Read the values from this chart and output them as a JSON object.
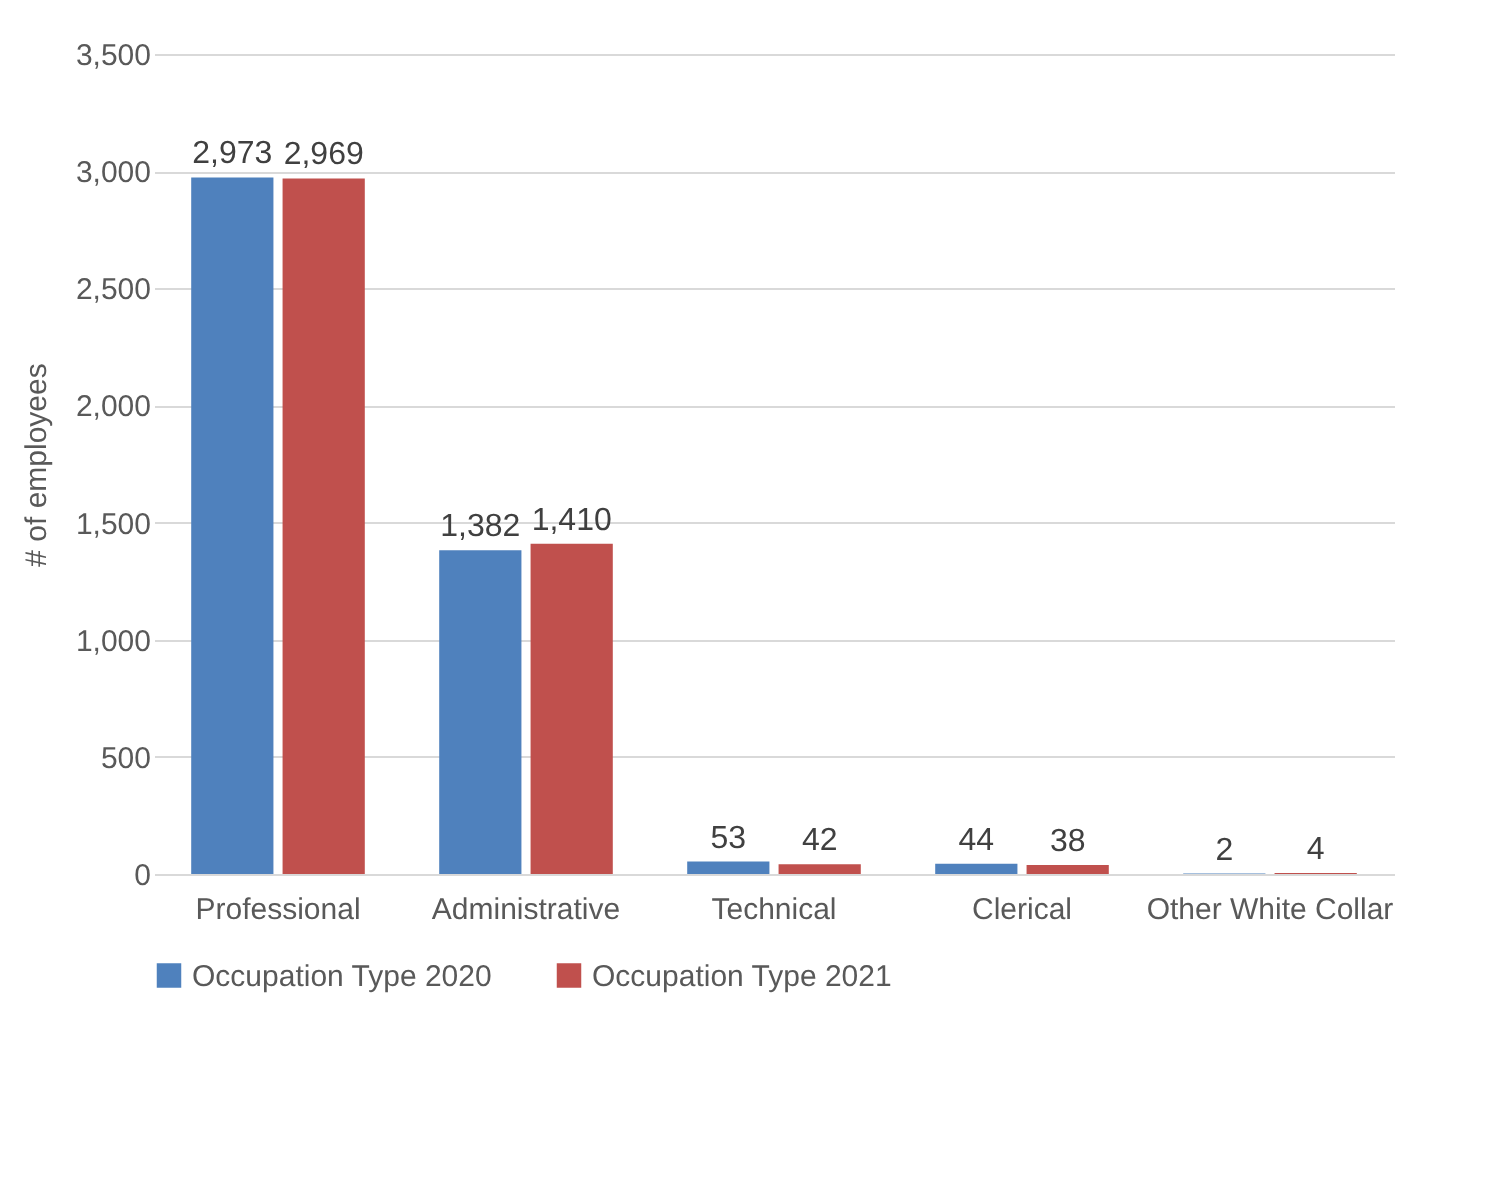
{
  "chart_data": {
    "type": "bar",
    "ylabel": "# of employees",
    "categories": [
      "Professional",
      "Administrative",
      "Technical",
      "Clerical",
      "Other White Collar"
    ],
    "series": [
      {
        "name": "Occupation Type 2020",
        "color": "#4f81bd",
        "values": [
          2973,
          1382,
          53,
          44,
          2
        ],
        "value_labels": [
          "2,973",
          "1,382",
          "53",
          "44",
          "2"
        ]
      },
      {
        "name": "Occupation Type 2021",
        "color": "#c0504d",
        "values": [
          2969,
          1410,
          42,
          38,
          4
        ],
        "value_labels": [
          "2,969",
          "1,410",
          "42",
          "38",
          "4"
        ]
      }
    ],
    "ylim": [
      0,
      3500
    ],
    "yticks": [
      0,
      {
        "value": 500,
        "label": "500"
      },
      {
        "value": 1000,
        "label": "1,000"
      },
      {
        "value": 1500,
        "label": "1,500"
      },
      {
        "value": 2000,
        "label": "2,000"
      },
      {
        "value": 2500,
        "label": "2,500"
      },
      {
        "value": 3000,
        "label": "3,000"
      },
      {
        "value": 3500,
        "label": "3,500"
      }
    ],
    "grid": "y",
    "legend": "bottom"
  }
}
